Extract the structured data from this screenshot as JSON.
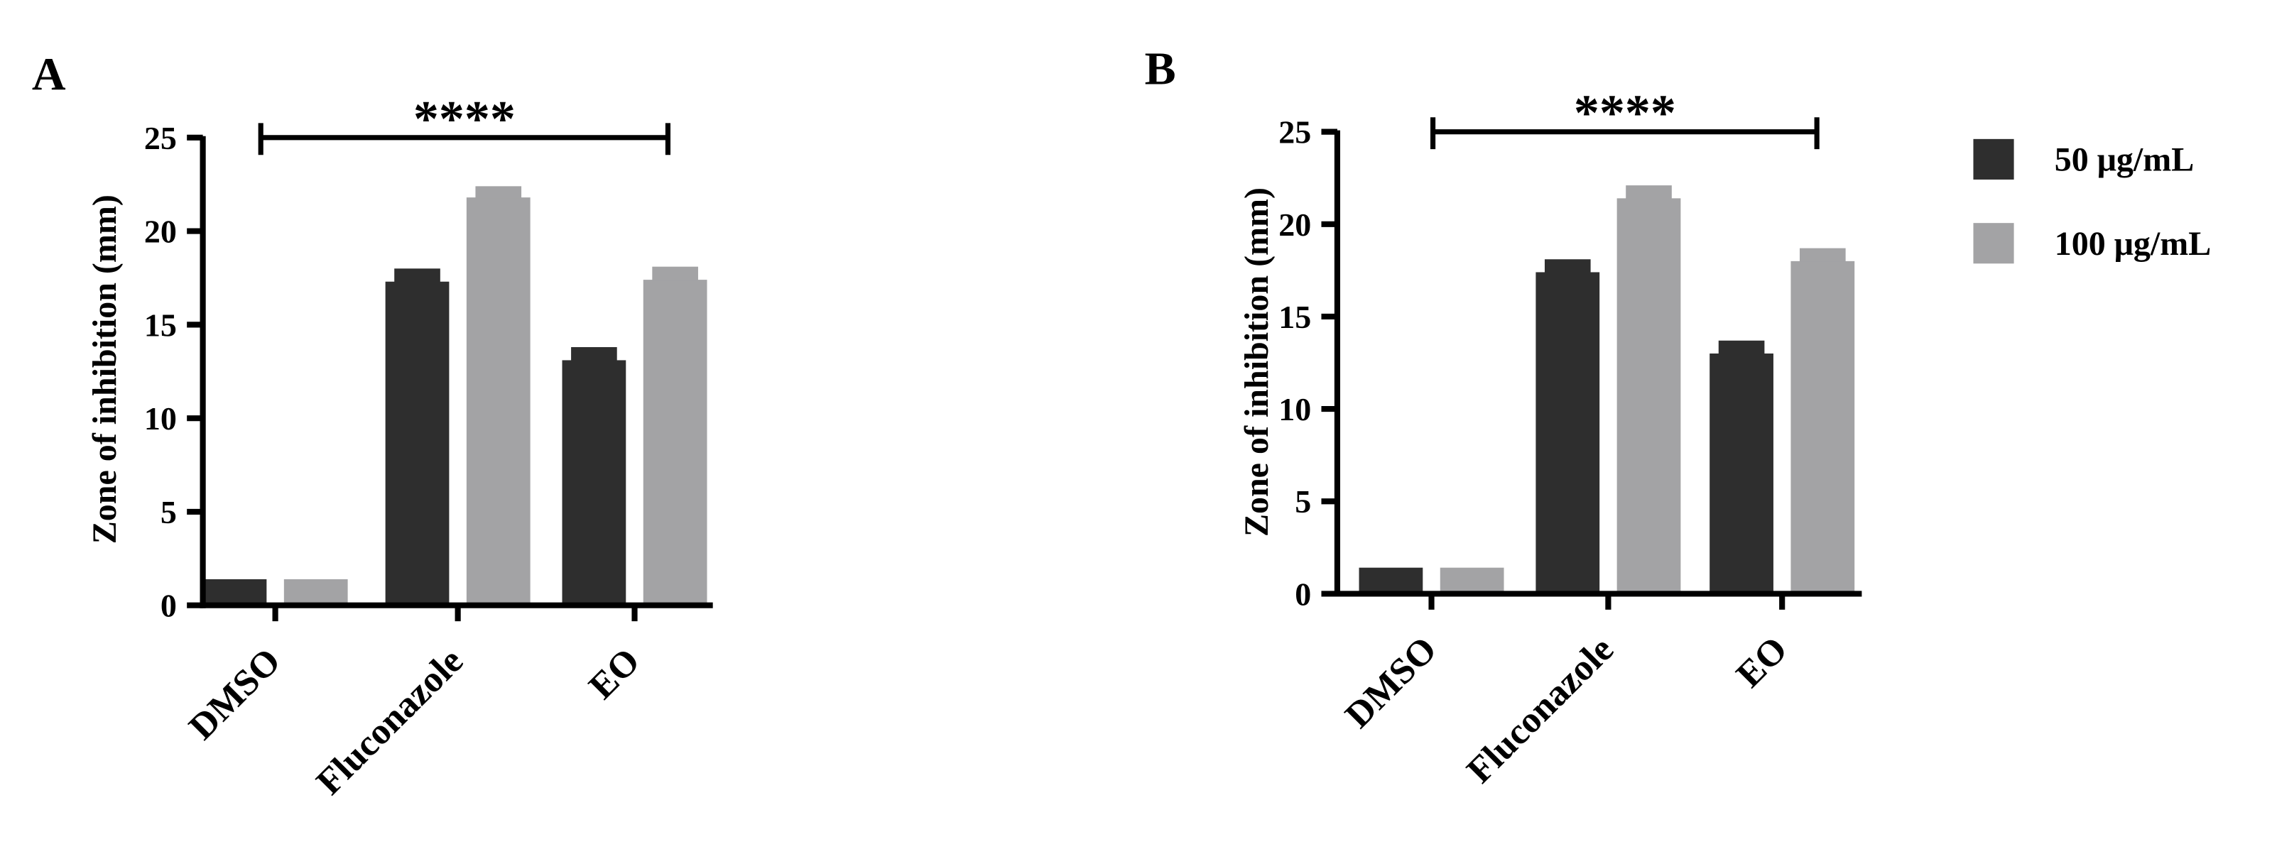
{
  "colors": {
    "series_50": "#2e2e2e",
    "series_100": "#a3a3a5",
    "axis": "#000000"
  },
  "legend": {
    "placement": "right",
    "items": [
      "50 μg/mL",
      "100 μg/mL"
    ]
  },
  "chart_data": [
    {
      "type": "bar",
      "panel": "A",
      "title": "",
      "xlabel": "",
      "ylabel": "Zone of inhibition (mm)",
      "ylim": [
        0,
        25
      ],
      "yticks": [
        "0",
        "5",
        "10",
        "15",
        "20",
        "25"
      ],
      "categories": [
        "DMSO",
        "Fluconazole",
        "EO"
      ],
      "series": [
        {
          "name": "50 μg/mL",
          "values": [
            0,
            17.3,
            13.1
          ],
          "errors": [
            0.6,
            0.7,
            0.7
          ]
        },
        {
          "name": "100 μg/mL",
          "values": [
            0,
            21.8,
            17.4
          ],
          "errors": [
            0.6,
            0.6,
            0.7
          ]
        }
      ],
      "significance": {
        "label": "****",
        "from": "DMSO",
        "to": "EO"
      },
      "grid": false
    },
    {
      "type": "bar",
      "panel": "B",
      "title": "",
      "xlabel": "",
      "ylabel": "Zone of inhibition (mm)",
      "ylim": [
        0,
        25
      ],
      "yticks": [
        "0",
        "5",
        "10",
        "15",
        "20",
        "25"
      ],
      "categories": [
        "DMSO",
        "Fluconazole",
        "EO"
      ],
      "series": [
        {
          "name": "50 μg/mL",
          "values": [
            0,
            17.4,
            13.0
          ],
          "errors": [
            0.6,
            0.7,
            0.7
          ]
        },
        {
          "name": "100 μg/mL",
          "values": [
            0,
            21.4,
            18.0
          ],
          "errors": [
            0.6,
            0.7,
            0.7
          ]
        }
      ],
      "significance": {
        "label": "****",
        "from": "DMSO",
        "to": "EO"
      },
      "grid": false
    }
  ]
}
